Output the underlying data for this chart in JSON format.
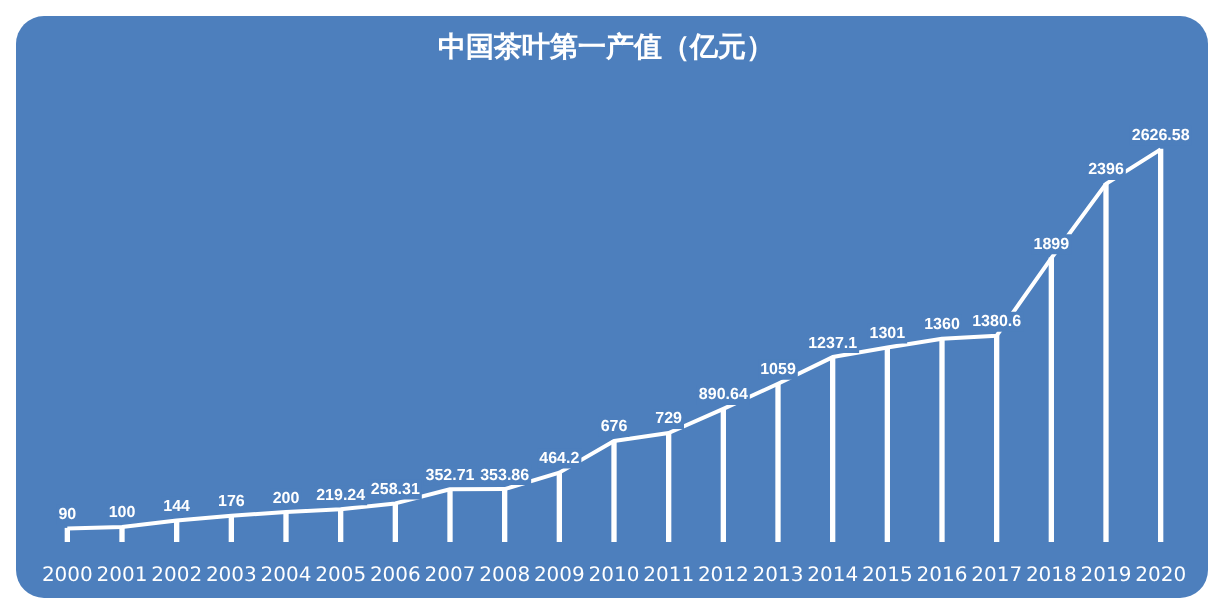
{
  "chart_data": {
    "type": "bar",
    "title": "中国茶叶第一产值（亿元）",
    "categories": [
      "2000",
      "2001",
      "2002",
      "2003",
      "2004",
      "2005",
      "2006",
      "2007",
      "2008",
      "2009",
      "2010",
      "2011",
      "2012",
      "2013",
      "2014",
      "2015",
      "2016",
      "2017",
      "2018",
      "2019",
      "2020"
    ],
    "series": [
      {
        "type": "bar",
        "color": "#ffffff",
        "values": [
          90,
          100,
          144,
          176,
          200,
          219.24,
          258.31,
          352.71,
          353.86,
          464.2,
          676,
          729,
          890.64,
          1059,
          1237.1,
          1301,
          1360,
          1380.6,
          1899,
          2396,
          2626.58
        ]
      },
      {
        "type": "line",
        "color": "#ffffff",
        "values": [
          90,
          100,
          144,
          176,
          200,
          219.24,
          258.31,
          352.71,
          353.86,
          464.2,
          676,
          729,
          890.64,
          1059,
          1237.1,
          1301,
          1360,
          1380.6,
          1899,
          2396,
          2626.58
        ],
        "value_labels": [
          "90",
          "100",
          "144",
          "176",
          "200",
          "219.24",
          "258.31",
          "352.71",
          "353.86",
          "464.2",
          "676",
          "729",
          "890.64",
          "1059",
          "1237.1",
          "1301",
          "1360",
          "1380.6",
          "1899",
          "2396",
          "2626.58"
        ]
      }
    ],
    "tick_labels": "x",
    "grid": false,
    "legend": false
  }
}
